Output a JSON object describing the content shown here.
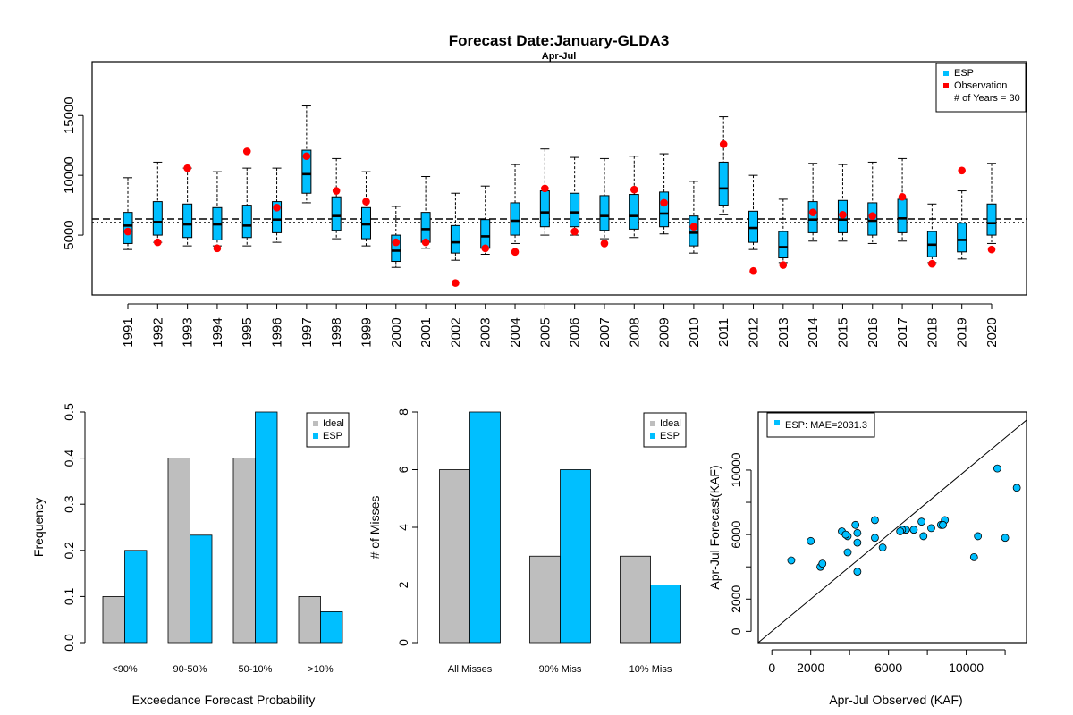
{
  "colors": {
    "esp": "#00bfff",
    "ideal": "#bebebe",
    "observation": "#ff0000",
    "outline": "#000000"
  },
  "chart_data": [
    {
      "type": "box",
      "title": "Forecast Date:January-GLDA3",
      "subtitle": "Apr-Jul",
      "xlabel": "",
      "ylabel": "",
      "ylim": [
        0,
        19500
      ],
      "yticks": [
        5000,
        10000,
        15000
      ],
      "reference_lines": [
        {
          "style": "dashed",
          "value": 6350
        },
        {
          "style": "dotted",
          "value": 6050
        }
      ],
      "legend": {
        "position": "top-right",
        "items": [
          {
            "label": "ESP",
            "symbol": "square",
            "color": "#00bfff"
          },
          {
            "label": "Observation",
            "symbol": "square",
            "color": "#ff0000"
          },
          {
            "label": "# of Years = 30",
            "symbol": "none"
          }
        ]
      },
      "categories": [
        "1991",
        "1992",
        "1993",
        "1994",
        "1995",
        "1996",
        "1997",
        "1998",
        "1999",
        "2000",
        "2001",
        "2002",
        "2003",
        "2004",
        "2005",
        "2006",
        "2007",
        "2008",
        "2009",
        "2010",
        "2011",
        "2012",
        "2013",
        "2014",
        "2015",
        "2016",
        "2017",
        "2018",
        "2019",
        "2020"
      ],
      "boxes": [
        {
          "min": 3800,
          "q1": 4300,
          "median": 5800,
          "q3": 6900,
          "max": 9800
        },
        {
          "min": 4400,
          "q1": 5000,
          "median": 6100,
          "q3": 7800,
          "max": 11100
        },
        {
          "min": 4100,
          "q1": 4800,
          "median": 5900,
          "q3": 7600,
          "max": 10600
        },
        {
          "min": 4100,
          "q1": 4600,
          "median": 5900,
          "q3": 7300,
          "max": 10300
        },
        {
          "min": 4100,
          "q1": 4800,
          "median": 5800,
          "q3": 7500,
          "max": 10600
        },
        {
          "min": 4400,
          "q1": 5200,
          "median": 6300,
          "q3": 7800,
          "max": 10600
        },
        {
          "min": 7700,
          "q1": 8500,
          "median": 10100,
          "q3": 12100,
          "max": 15800
        },
        {
          "min": 4700,
          "q1": 5400,
          "median": 6600,
          "q3": 8200,
          "max": 11400
        },
        {
          "min": 4100,
          "q1": 4700,
          "median": 5900,
          "q3": 7300,
          "max": 10300
        },
        {
          "min": 2300,
          "q1": 2800,
          "median": 3700,
          "q3": 5000,
          "max": 7400
        },
        {
          "min": 3900,
          "q1": 4400,
          "median": 5500,
          "q3": 6900,
          "max": 9900
        },
        {
          "min": 2900,
          "q1": 3500,
          "median": 4400,
          "q3": 5800,
          "max": 8500
        },
        {
          "min": 3400,
          "q1": 3900,
          "median": 4900,
          "q3": 6300,
          "max": 9100
        },
        {
          "min": 4300,
          "q1": 5000,
          "median": 6200,
          "q3": 7700,
          "max": 10900
        },
        {
          "min": 5000,
          "q1": 5700,
          "median": 6900,
          "q3": 8700,
          "max": 12200
        },
        {
          "min": 5000,
          "q1": 5700,
          "median": 6900,
          "q3": 8500,
          "max": 11500
        },
        {
          "min": 4700,
          "q1": 5400,
          "median": 6600,
          "q3": 8300,
          "max": 11400
        },
        {
          "min": 4800,
          "q1": 5500,
          "median": 6600,
          "q3": 8400,
          "max": 11600
        },
        {
          "min": 5100,
          "q1": 5700,
          "median": 6800,
          "q3": 8600,
          "max": 11800
        },
        {
          "min": 3500,
          "q1": 4100,
          "median": 5200,
          "q3": 6600,
          "max": 9500
        },
        {
          "min": 6700,
          "q1": 7500,
          "median": 8900,
          "q3": 11100,
          "max": 14900
        },
        {
          "min": 3800,
          "q1": 4400,
          "median": 5600,
          "q3": 7000,
          "max": 10000
        },
        {
          "min": 2700,
          "q1": 3100,
          "median": 4000,
          "q3": 5300,
          "max": 8000
        },
        {
          "min": 4500,
          "q1": 5200,
          "median": 6300,
          "q3": 7800,
          "max": 11000
        },
        {
          "min": 4500,
          "q1": 5200,
          "median": 6300,
          "q3": 7900,
          "max": 10900
        },
        {
          "min": 4300,
          "q1": 5000,
          "median": 6200,
          "q3": 7700,
          "max": 11100
        },
        {
          "min": 4500,
          "q1": 5200,
          "median": 6400,
          "q3": 8000,
          "max": 11400
        },
        {
          "min": 2700,
          "q1": 3200,
          "median": 4200,
          "q3": 5300,
          "max": 7600
        },
        {
          "min": 3000,
          "q1": 3600,
          "median": 4600,
          "q3": 6000,
          "max": 8700
        },
        {
          "min": 4300,
          "q1": 5000,
          "median": 6000,
          "q3": 7600,
          "max": 11000
        }
      ],
      "observations": [
        5300,
        4400,
        10600,
        3900,
        12000,
        7300,
        11600,
        8700,
        7800,
        4400,
        4400,
        1000,
        3900,
        3600,
        8900,
        5300,
        4300,
        8800,
        7700,
        5700,
        12600,
        2000,
        2500,
        6900,
        6700,
        6600,
        8200,
        2600,
        10400,
        3800
      ]
    },
    {
      "type": "bar",
      "title": "",
      "xlabel": "Exceedance Forecast Probability",
      "ylabel": "Frequency",
      "ylim": [
        0,
        0.5
      ],
      "yticks": [
        "0.0",
        "0.1",
        "0.2",
        "0.3",
        "0.4",
        "0.5"
      ],
      "categories": [
        "<90%",
        "90-50%",
        "50-10%",
        ">10%"
      ],
      "legend": {
        "position": "top-right"
      },
      "series": [
        {
          "name": "Ideal",
          "values": [
            0.1,
            0.4,
            0.4,
            0.1
          ]
        },
        {
          "name": "ESP",
          "values": [
            0.2,
            0.233,
            0.5,
            0.067
          ]
        }
      ]
    },
    {
      "type": "bar",
      "title": "",
      "xlabel": "",
      "ylabel": "# of Misses",
      "ylim": [
        0,
        8
      ],
      "yticks": [
        "0",
        "2",
        "4",
        "6",
        "8"
      ],
      "categories": [
        "All Misses",
        "90% Miss",
        "10% Miss"
      ],
      "legend": {
        "position": "top-right"
      },
      "series": [
        {
          "name": "Ideal",
          "values": [
            6,
            3,
            3
          ]
        },
        {
          "name": "ESP",
          "values": [
            8,
            6,
            2
          ]
        }
      ]
    },
    {
      "type": "scatter",
      "title": "",
      "xlabel": "Apr-Jul Observed (KAF)",
      "ylabel": "Apr-Jul Forecast(KAF)",
      "xlim": [
        -700,
        13100
      ],
      "ylim": [
        -700,
        13600
      ],
      "xticks": [
        "0",
        "2000",
        "6000",
        "10000"
      ],
      "yticks": [
        "0",
        "2000",
        "6000",
        "10000"
      ],
      "reference_line": "1:1",
      "legend": {
        "position": "top-left",
        "items": [
          {
            "label": "ESP: MAE=2031.3"
          }
        ]
      },
      "points": [
        {
          "x": 5300,
          "y": 5800
        },
        {
          "x": 4400,
          "y": 6100
        },
        {
          "x": 10600,
          "y": 5900
        },
        {
          "x": 3900,
          "y": 5900
        },
        {
          "x": 12000,
          "y": 5800
        },
        {
          "x": 7300,
          "y": 6300
        },
        {
          "x": 11600,
          "y": 10100
        },
        {
          "x": 8700,
          "y": 6600
        },
        {
          "x": 7800,
          "y": 5900
        },
        {
          "x": 4400,
          "y": 3700
        },
        {
          "x": 4400,
          "y": 5500
        },
        {
          "x": 1000,
          "y": 4400
        },
        {
          "x": 3900,
          "y": 4900
        },
        {
          "x": 3600,
          "y": 6200
        },
        {
          "x": 8900,
          "y": 6900
        },
        {
          "x": 5300,
          "y": 6900
        },
        {
          "x": 4300,
          "y": 6600
        },
        {
          "x": 8800,
          "y": 6600
        },
        {
          "x": 7700,
          "y": 6800
        },
        {
          "x": 5700,
          "y": 5200
        },
        {
          "x": 12600,
          "y": 8900
        },
        {
          "x": 2000,
          "y": 5600
        },
        {
          "x": 2500,
          "y": 4000
        },
        {
          "x": 6900,
          "y": 6300
        },
        {
          "x": 6700,
          "y": 6300
        },
        {
          "x": 6600,
          "y": 6200
        },
        {
          "x": 8200,
          "y": 6400
        },
        {
          "x": 2600,
          "y": 4200
        },
        {
          "x": 10400,
          "y": 4600
        },
        {
          "x": 3800,
          "y": 6000
        }
      ]
    }
  ]
}
